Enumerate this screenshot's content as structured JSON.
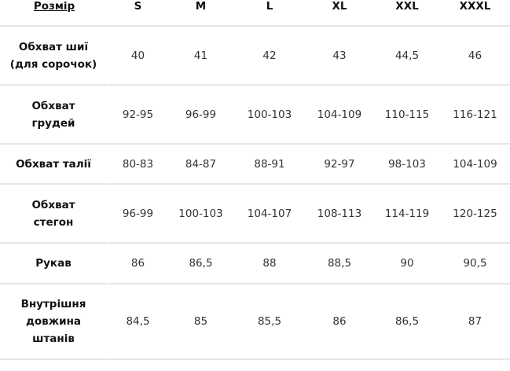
{
  "table": {
    "header_label": "Розмір",
    "sizes": [
      "S",
      "M",
      "L",
      "XL",
      "XXL",
      "XXXL"
    ],
    "rows": [
      {
        "label": [
          "Обхват шиї",
          "(для сорочок)"
        ],
        "values": [
          "40",
          "41",
          "42",
          "43",
          "44,5",
          "46"
        ]
      },
      {
        "label": [
          "Обхват",
          "грудей"
        ],
        "values": [
          "92-95",
          "96-99",
          "100-103",
          "104-109",
          "110-115",
          "116-121"
        ]
      },
      {
        "label": [
          "Обхват талії"
        ],
        "values": [
          "80-83",
          "84-87",
          "88-91",
          "92-97",
          "98-103",
          "104-109"
        ]
      },
      {
        "label": [
          "Обхват",
          "стегон"
        ],
        "values": [
          "96-99",
          "100-103",
          "104-107",
          "108-113",
          "114-119",
          "120-125"
        ]
      },
      {
        "label": [
          "Рукав"
        ],
        "values": [
          "86",
          "86,5",
          "88",
          "88,5",
          "90",
          "90,5"
        ]
      },
      {
        "label": [
          "Внутрішня",
          "довжина",
          "штанів"
        ],
        "values": [
          "84,5",
          "85",
          "85,5",
          "86",
          "86,5",
          "87"
        ]
      }
    ]
  }
}
